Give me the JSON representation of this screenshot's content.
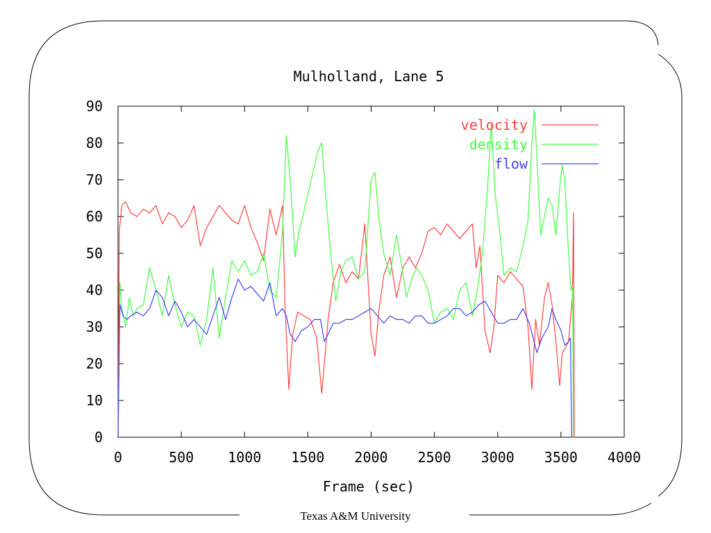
{
  "footer": "Texas A&M University",
  "chart_data": {
    "type": "line",
    "title": "Mulholland, Lane 5",
    "xlabel": "Frame (sec)",
    "ylabel": "",
    "xlim": [
      0,
      4000
    ],
    "ylim": [
      0,
      90
    ],
    "x_ticks": [
      "0",
      "500",
      "1000",
      "1500",
      "2000",
      "2500",
      "3000",
      "3500",
      "4000"
    ],
    "y_ticks": [
      "0",
      "10",
      "20",
      "30",
      "40",
      "50",
      "60",
      "70",
      "80",
      "90"
    ],
    "grid": false,
    "legend_position": "top-right",
    "series": [
      {
        "name": "velocity",
        "color": "#ff4040",
        "x": [
          0,
          10,
          30,
          60,
          100,
          150,
          200,
          250,
          300,
          350,
          400,
          450,
          500,
          550,
          600,
          650,
          700,
          750,
          800,
          850,
          900,
          950,
          1000,
          1050,
          1100,
          1150,
          1200,
          1250,
          1300,
          1320,
          1350,
          1380,
          1420,
          1470,
          1520,
          1570,
          1610,
          1630,
          1660,
          1700,
          1750,
          1800,
          1850,
          1900,
          1950,
          2000,
          2030,
          2060,
          2100,
          2150,
          2200,
          2250,
          2300,
          2350,
          2400,
          2450,
          2500,
          2550,
          2600,
          2650,
          2700,
          2750,
          2800,
          2830,
          2860,
          2900,
          2940,
          2970,
          3000,
          3050,
          3100,
          3150,
          3200,
          3240,
          3270,
          3300,
          3330,
          3370,
          3400,
          3430,
          3460,
          3490,
          3510,
          3530,
          3560,
          3590,
          3600,
          3605,
          3610
        ],
        "y": [
          0,
          56,
          63,
          64,
          61,
          60,
          62,
          61,
          63,
          58,
          61,
          60,
          57,
          59,
          63,
          52,
          57,
          60,
          63,
          61,
          59,
          58,
          63,
          57,
          53,
          48,
          62,
          55,
          63,
          35,
          13,
          28,
          34,
          33,
          32,
          27,
          12,
          20,
          32,
          42,
          47,
          42,
          45,
          43,
          58,
          28,
          22,
          34,
          44,
          49,
          38,
          46,
          49,
          46,
          50,
          56,
          57,
          55,
          58,
          56,
          54,
          56,
          58,
          46,
          52,
          29,
          23,
          30,
          44,
          42,
          45,
          43,
          41,
          30,
          13,
          32,
          25,
          38,
          42,
          36,
          26,
          14,
          23,
          24,
          26,
          38,
          61,
          0,
          0
        ]
      },
      {
        "name": "density",
        "color": "#40ff40",
        "x": [
          0,
          15,
          30,
          60,
          90,
          120,
          150,
          200,
          250,
          300,
          350,
          400,
          450,
          500,
          550,
          600,
          650,
          700,
          750,
          800,
          850,
          900,
          950,
          1000,
          1050,
          1100,
          1150,
          1200,
          1250,
          1300,
          1330,
          1360,
          1400,
          1430,
          1460,
          1500,
          1540,
          1580,
          1610,
          1640,
          1680,
          1720,
          1760,
          1800,
          1850,
          1900,
          1950,
          2000,
          2030,
          2060,
          2100,
          2150,
          2200,
          2240,
          2280,
          2320,
          2360,
          2400,
          2450,
          2500,
          2550,
          2600,
          2650,
          2700,
          2750,
          2800,
          2840,
          2880,
          2920,
          2950,
          2980,
          3010,
          3050,
          3100,
          3150,
          3200,
          3240,
          3270,
          3290,
          3310,
          3340,
          3370,
          3400,
          3430,
          3460,
          3490,
          3510,
          3530,
          3560,
          3580,
          3590,
          3600
        ],
        "y": [
          0,
          42,
          35,
          30,
          38,
          33,
          35,
          36,
          46,
          40,
          33,
          44,
          36,
          30,
          34,
          33,
          25,
          32,
          46,
          27,
          38,
          48,
          45,
          48,
          44,
          45,
          50,
          40,
          38,
          56,
          82,
          70,
          49,
          56,
          60,
          66,
          72,
          78,
          80,
          66,
          50,
          37,
          45,
          48,
          49,
          43,
          45,
          70,
          72,
          60,
          50,
          44,
          55,
          47,
          38,
          43,
          46,
          44,
          40,
          31,
          34,
          35,
          32,
          40,
          42,
          33,
          40,
          50,
          68,
          85,
          66,
          58,
          44,
          46,
          45,
          52,
          59,
          80,
          89,
          76,
          55,
          60,
          65,
          63,
          55,
          68,
          74,
          70,
          50,
          40,
          41,
          0
        ]
      },
      {
        "name": "flow",
        "color": "#4040ff",
        "x": [
          0,
          15,
          40,
          70,
          100,
          150,
          200,
          250,
          300,
          350,
          400,
          450,
          500,
          550,
          600,
          650,
          700,
          750,
          800,
          850,
          900,
          950,
          1000,
          1050,
          1100,
          1150,
          1200,
          1250,
          1300,
          1330,
          1360,
          1400,
          1450,
          1500,
          1550,
          1600,
          1630,
          1660,
          1700,
          1750,
          1800,
          1850,
          1900,
          1950,
          2000,
          2050,
          2100,
          2150,
          2200,
          2250,
          2300,
          2350,
          2400,
          2450,
          2500,
          2550,
          2600,
          2650,
          2700,
          2750,
          2800,
          2850,
          2900,
          2950,
          3000,
          3050,
          3100,
          3150,
          3200,
          3250,
          3280,
          3310,
          3350,
          3400,
          3430,
          3460,
          3500,
          3530,
          3560,
          3575,
          3585
        ],
        "y": [
          0,
          36,
          33,
          32,
          33,
          34,
          33,
          35,
          40,
          38,
          33,
          37,
          34,
          30,
          32,
          30,
          28,
          33,
          38,
          32,
          38,
          43,
          40,
          41,
          39,
          37,
          42,
          33,
          35,
          33,
          28,
          26,
          29,
          30,
          32,
          32,
          26,
          28,
          31,
          31,
          32,
          32,
          33,
          34,
          35,
          33,
          31,
          33,
          32,
          32,
          31,
          33,
          33,
          31,
          31,
          32,
          33,
          35,
          35,
          33,
          34,
          36,
          37,
          34,
          31,
          31,
          32,
          32,
          35,
          31,
          27,
          23,
          27,
          30,
          35,
          32,
          29,
          25,
          26,
          27,
          0
        ]
      }
    ]
  }
}
